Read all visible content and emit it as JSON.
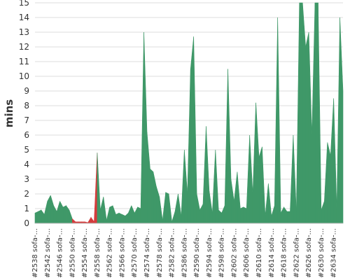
{
  "chart_data": {
    "type": "area",
    "ylabel": "mins",
    "xlabel": "",
    "ylim": [
      0,
      15
    ],
    "yticks": [
      0,
      1,
      2,
      3,
      4,
      5,
      6,
      7,
      8,
      9,
      10,
      11,
      12,
      13,
      14,
      15
    ],
    "grid": "horizontal",
    "x_tick_labels": [
      "#2538 sofa-...",
      "#2542 sofa-...",
      "#2546 sofa-...",
      "#2550 sofa-...",
      "#2554 sofa-...",
      "#2558 sofa-...",
      "#2562 sofa-...",
      "#2566 sofa-...",
      "#2570 sofa-...",
      "#2574 sofa-...",
      "#2578 sofa-...",
      "#2582 sofa-...",
      "#2586 sofa-...",
      "#2590 sofa-...",
      "#2594 sofa-...",
      "#2598 sofa-...",
      "#2602 sofa-...",
      "#2606 sofa-...",
      "#2610 sofa-...",
      "#2614 sofa-...",
      "#2618 sofa-...",
      "#2622 sofa-...",
      "#2626 sofa-...",
      "#2630 sofa-...",
      "#2634 sofa-..."
    ],
    "x": [
      2538,
      2539,
      2540,
      2541,
      2542,
      2543,
      2544,
      2545,
      2546,
      2547,
      2548,
      2549,
      2550,
      2551,
      2552,
      2553,
      2554,
      2555,
      2556,
      2557,
      2558,
      2559,
      2560,
      2561,
      2562,
      2563,
      2564,
      2565,
      2566,
      2567,
      2568,
      2569,
      2570,
      2571,
      2572,
      2573,
      2574,
      2575,
      2576,
      2577,
      2578,
      2579,
      2580,
      2581,
      2582,
      2583,
      2584,
      2585,
      2586,
      2587,
      2588,
      2589,
      2590,
      2591,
      2592,
      2593,
      2594,
      2595,
      2596,
      2597,
      2598,
      2599,
      2600,
      2601,
      2602,
      2603,
      2604,
      2605,
      2606,
      2607,
      2608,
      2609,
      2610,
      2611,
      2612,
      2613,
      2614,
      2615,
      2616,
      2617,
      2618,
      2619,
      2620,
      2621,
      2622,
      2623,
      2624,
      2625,
      2626,
      2627,
      2628,
      2629,
      2630,
      2631,
      2632,
      2633,
      2634,
      2635,
      2636,
      2637
    ],
    "values": [
      0.7,
      0.8,
      0.9,
      0.6,
      1.5,
      1.9,
      1.2,
      0.8,
      1.5,
      1.1,
      1.2,
      0.9,
      0.3,
      0.1,
      0.1,
      0.1,
      0.1,
      0.05,
      0.4,
      0.1,
      4.8,
      0.9,
      1.8,
      0.2,
      1.1,
      1.2,
      0.6,
      0.7,
      0.6,
      0.5,
      0.7,
      1.2,
      0.7,
      1.1,
      1.0,
      13.0,
      6.2,
      3.7,
      3.5,
      2.5,
      1.8,
      0.2,
      2.1,
      2.0,
      0.1,
      0.8,
      2.0,
      0.5,
      5.0,
      2.0,
      10.5,
      12.7,
      2.0,
      0.9,
      1.3,
      6.6,
      2.2,
      0.7,
      5.0,
      0.9,
      0.7,
      1.2,
      10.5,
      3.0,
      1.5,
      3.5,
      1.0,
      1.1,
      1.0,
      6.0,
      2.0,
      8.2,
      4.5,
      5.2,
      0.5,
      2.7,
      0.5,
      1.2,
      14.0,
      0.7,
      1.1,
      0.8,
      0.8,
      6.0,
      0.8,
      15.0,
      15.0,
      12.0,
      13.0,
      6.0,
      15.0,
      15.0,
      0.9,
      1.5,
      5.5,
      4.6,
      8.5,
      0.9,
      14.0,
      9.0
    ],
    "series_status": [
      "success",
      "success",
      "success",
      "success",
      "success",
      "success",
      "success",
      "success",
      "success",
      "success",
      "success",
      "success",
      "failed",
      "failed",
      "failed",
      "failed",
      "failed",
      "failed",
      "failed",
      "failed",
      "success",
      "success",
      "success",
      "success",
      "success",
      "success",
      "success",
      "success",
      "success",
      "success",
      "success",
      "success",
      "success",
      "success",
      "success",
      "success",
      "success",
      "success",
      "success",
      "success",
      "success",
      "success",
      "success",
      "success",
      "success",
      "success",
      "success",
      "success",
      "success",
      "success",
      "success",
      "success",
      "success",
      "success",
      "success",
      "success",
      "success",
      "success",
      "success",
      "success",
      "success",
      "success",
      "success",
      "success",
      "success",
      "success",
      "success",
      "success",
      "success",
      "success",
      "success",
      "success",
      "success",
      "success",
      "success",
      "success",
      "success",
      "success",
      "success",
      "success",
      "success",
      "success",
      "success",
      "success",
      "success",
      "success",
      "success",
      "success",
      "success",
      "success",
      "success",
      "success",
      "success",
      "success",
      "success",
      "success",
      "success",
      "success",
      "success",
      "success"
    ],
    "colors": {
      "success": "#3f9868",
      "failed": "#d43c3c",
      "grid": "#dddddd",
      "text": "#333333"
    }
  }
}
